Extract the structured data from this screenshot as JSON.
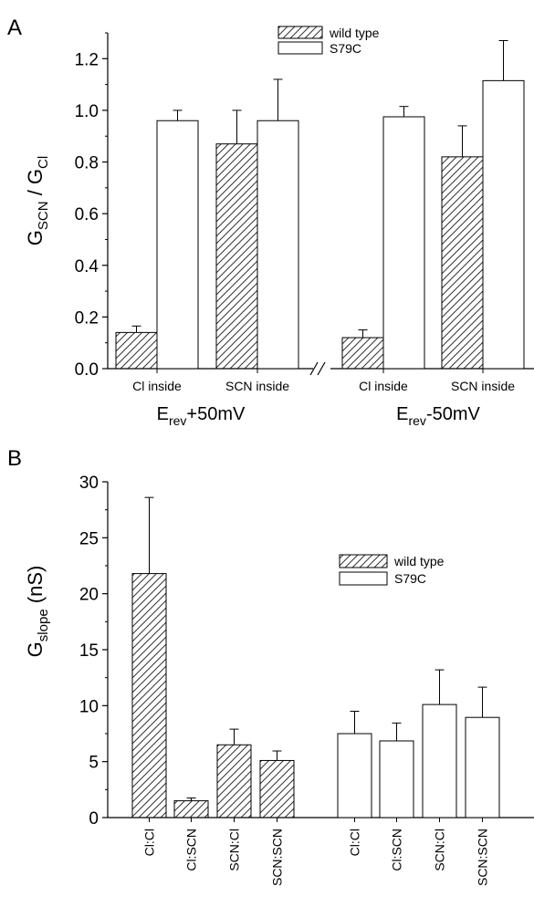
{
  "panel_a_letter": "A",
  "panel_b_letter": "B",
  "chart_data": [
    {
      "type": "bar",
      "panel": "A",
      "ylabel_main": "G",
      "ylabel_sub1": "SCN",
      "ylabel_mid": " / G",
      "ylabel_sub2": "Cl",
      "ylim": [
        0,
        1.3
      ],
      "yticks": [
        "0.0",
        "0.2",
        "0.4",
        "0.6",
        "0.8",
        "1.0",
        "1.2"
      ],
      "categories": [
        "Cl inside",
        "SCN inside",
        "Cl inside",
        "SCN inside"
      ],
      "axis_break": true,
      "groups": [
        {
          "prefix": "E",
          "sub": "rev",
          "suffix": "+50mV"
        },
        {
          "prefix": "E",
          "sub": "rev",
          "suffix": "-50mV"
        }
      ],
      "legend": {
        "position": "top-center",
        "entries": [
          "wild type",
          "S79C"
        ]
      },
      "series": [
        {
          "name": "wild type",
          "fill": "hatched",
          "values": [
            0.14,
            0.87,
            0.12,
            0.82
          ],
          "errors": [
            0.025,
            0.13,
            0.03,
            0.12
          ]
        },
        {
          "name": "S79C",
          "fill": "open",
          "values": [
            0.96,
            0.96,
            0.975,
            1.115
          ],
          "errors": [
            0.04,
            0.16,
            0.04,
            0.155
          ]
        }
      ]
    },
    {
      "type": "bar",
      "panel": "B",
      "ylabel_main": "G",
      "ylabel_sub1": "slope",
      "ylabel_mid": " (nS)",
      "ylim": [
        0,
        30
      ],
      "yticks": [
        "0",
        "5",
        "10",
        "15",
        "20",
        "25",
        "30"
      ],
      "legend": {
        "position": "top-right",
        "entries": [
          "wild type",
          " S79C"
        ]
      },
      "series": [
        {
          "name": "wild type",
          "fill": "hatched",
          "categories": [
            "Cl:Cl",
            "Cl:SCN",
            "SCN:Cl",
            "SCN:SCN"
          ],
          "values": [
            21.8,
            1.5,
            6.5,
            5.1
          ],
          "errors": [
            6.8,
            0.25,
            1.4,
            0.85
          ]
        },
        {
          "name": " S79C",
          "fill": "open",
          "categories": [
            "Cl:Cl",
            "Cl:SCN",
            "SCN:Cl",
            "SCN:SCN"
          ],
          "values": [
            7.5,
            6.85,
            10.1,
            8.95
          ],
          "errors": [
            2.0,
            1.6,
            3.1,
            2.7
          ]
        }
      ]
    }
  ]
}
